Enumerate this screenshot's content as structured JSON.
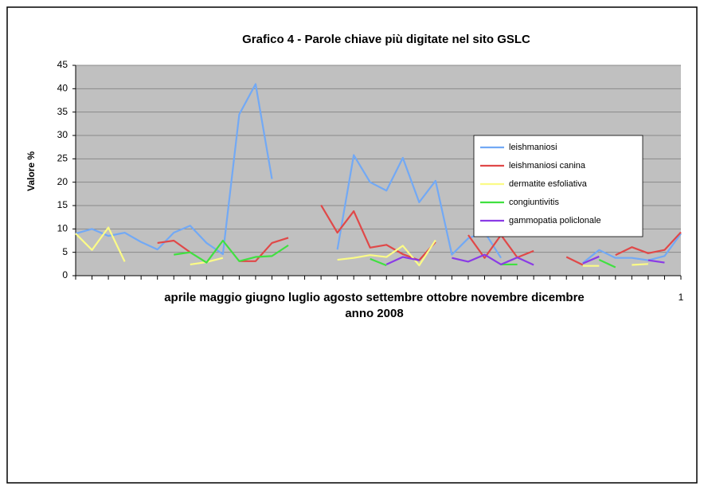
{
  "chart_data": {
    "type": "line",
    "title": "Grafico 4 - Parole chiave più digitate nel sito GSLC",
    "ylabel": "Valore %",
    "xlabel": "anno 2008",
    "month_labels": "aprile maggio giugno luglio agosto settembre ottobre novembre dicembre",
    "categories": [
      null,
      null,
      null,
      null,
      null,
      null,
      null,
      null,
      null,
      null,
      null,
      null,
      null,
      null,
      null,
      null,
      null,
      null,
      null,
      null,
      null,
      null,
      null,
      null,
      null,
      null,
      null,
      null,
      null,
      null,
      null,
      null,
      null,
      null,
      null,
      null,
      null,
      "1"
    ],
    "ylim": [
      0,
      45
    ],
    "yticks": [
      0,
      5,
      10,
      15,
      20,
      25,
      30,
      35,
      40,
      45
    ],
    "grid": true,
    "legend": "upper right",
    "series": [
      {
        "name": "leishmaniosi",
        "color": "#72a9f5",
        "values": [
          9,
          10,
          8.5,
          9.2,
          7.2,
          5.6,
          9.2,
          10.7,
          7,
          4.6,
          34.5,
          41,
          20.7,
          null,
          null,
          null,
          5.6,
          25.8,
          20,
          18.2,
          25.2,
          15.7,
          20.3,
          4.5,
          8,
          9.3,
          3.8,
          null,
          null,
          null,
          null,
          2.7,
          5.5,
          3.8,
          3.8,
          3.3,
          4.2,
          9
        ]
      },
      {
        "name": "leishmaniosi canina",
        "color": "#e04848",
        "values": [
          null,
          null,
          null,
          null,
          null,
          7,
          7.5,
          5,
          null,
          null,
          3.1,
          3.1,
          7,
          8.1,
          null,
          15.1,
          9.2,
          13.8,
          6,
          6.6,
          4.6,
          3.3,
          7.2,
          null,
          8.7,
          3.8,
          8.7,
          3.9,
          5.3,
          null,
          4,
          2.3,
          null,
          4.4,
          6.1,
          4.8,
          5.5,
          9.3
        ]
      },
      {
        "name": "dermatite esfoliativa",
        "color": "#fbfb86",
        "values": [
          9,
          5.5,
          10.3,
          3,
          null,
          null,
          null,
          2.4,
          2.9,
          3.8,
          null,
          null,
          null,
          null,
          null,
          null,
          3.4,
          3.8,
          4.4,
          4,
          6.4,
          2.2,
          7.6,
          null,
          null,
          null,
          null,
          null,
          null,
          null,
          null,
          2.1,
          2.1,
          null,
          2.3,
          2.5,
          null,
          null
        ]
      },
      {
        "name": "congiuntivitis",
        "color": "#40e040",
        "values": [
          null,
          null,
          null,
          null,
          null,
          null,
          4.5,
          5,
          2.8,
          7.5,
          3.1,
          4,
          4.2,
          6.5,
          null,
          null,
          null,
          null,
          3.6,
          2.2,
          null,
          null,
          null,
          null,
          null,
          null,
          2.4,
          2.4,
          null,
          null,
          null,
          null,
          3.4,
          1.8,
          null,
          null,
          null,
          null
        ]
      },
      {
        "name": "gammopatia policlonale",
        "color": "#8a3be6",
        "values": [
          null,
          null,
          null,
          null,
          null,
          null,
          null,
          null,
          null,
          null,
          null,
          null,
          null,
          null,
          null,
          null,
          null,
          null,
          null,
          2.4,
          4,
          3.3,
          null,
          3.8,
          3,
          4.5,
          2.4,
          3.9,
          2.3,
          null,
          null,
          2.6,
          4.1,
          null,
          null,
          3.3,
          2.8,
          null
        ]
      }
    ]
  }
}
